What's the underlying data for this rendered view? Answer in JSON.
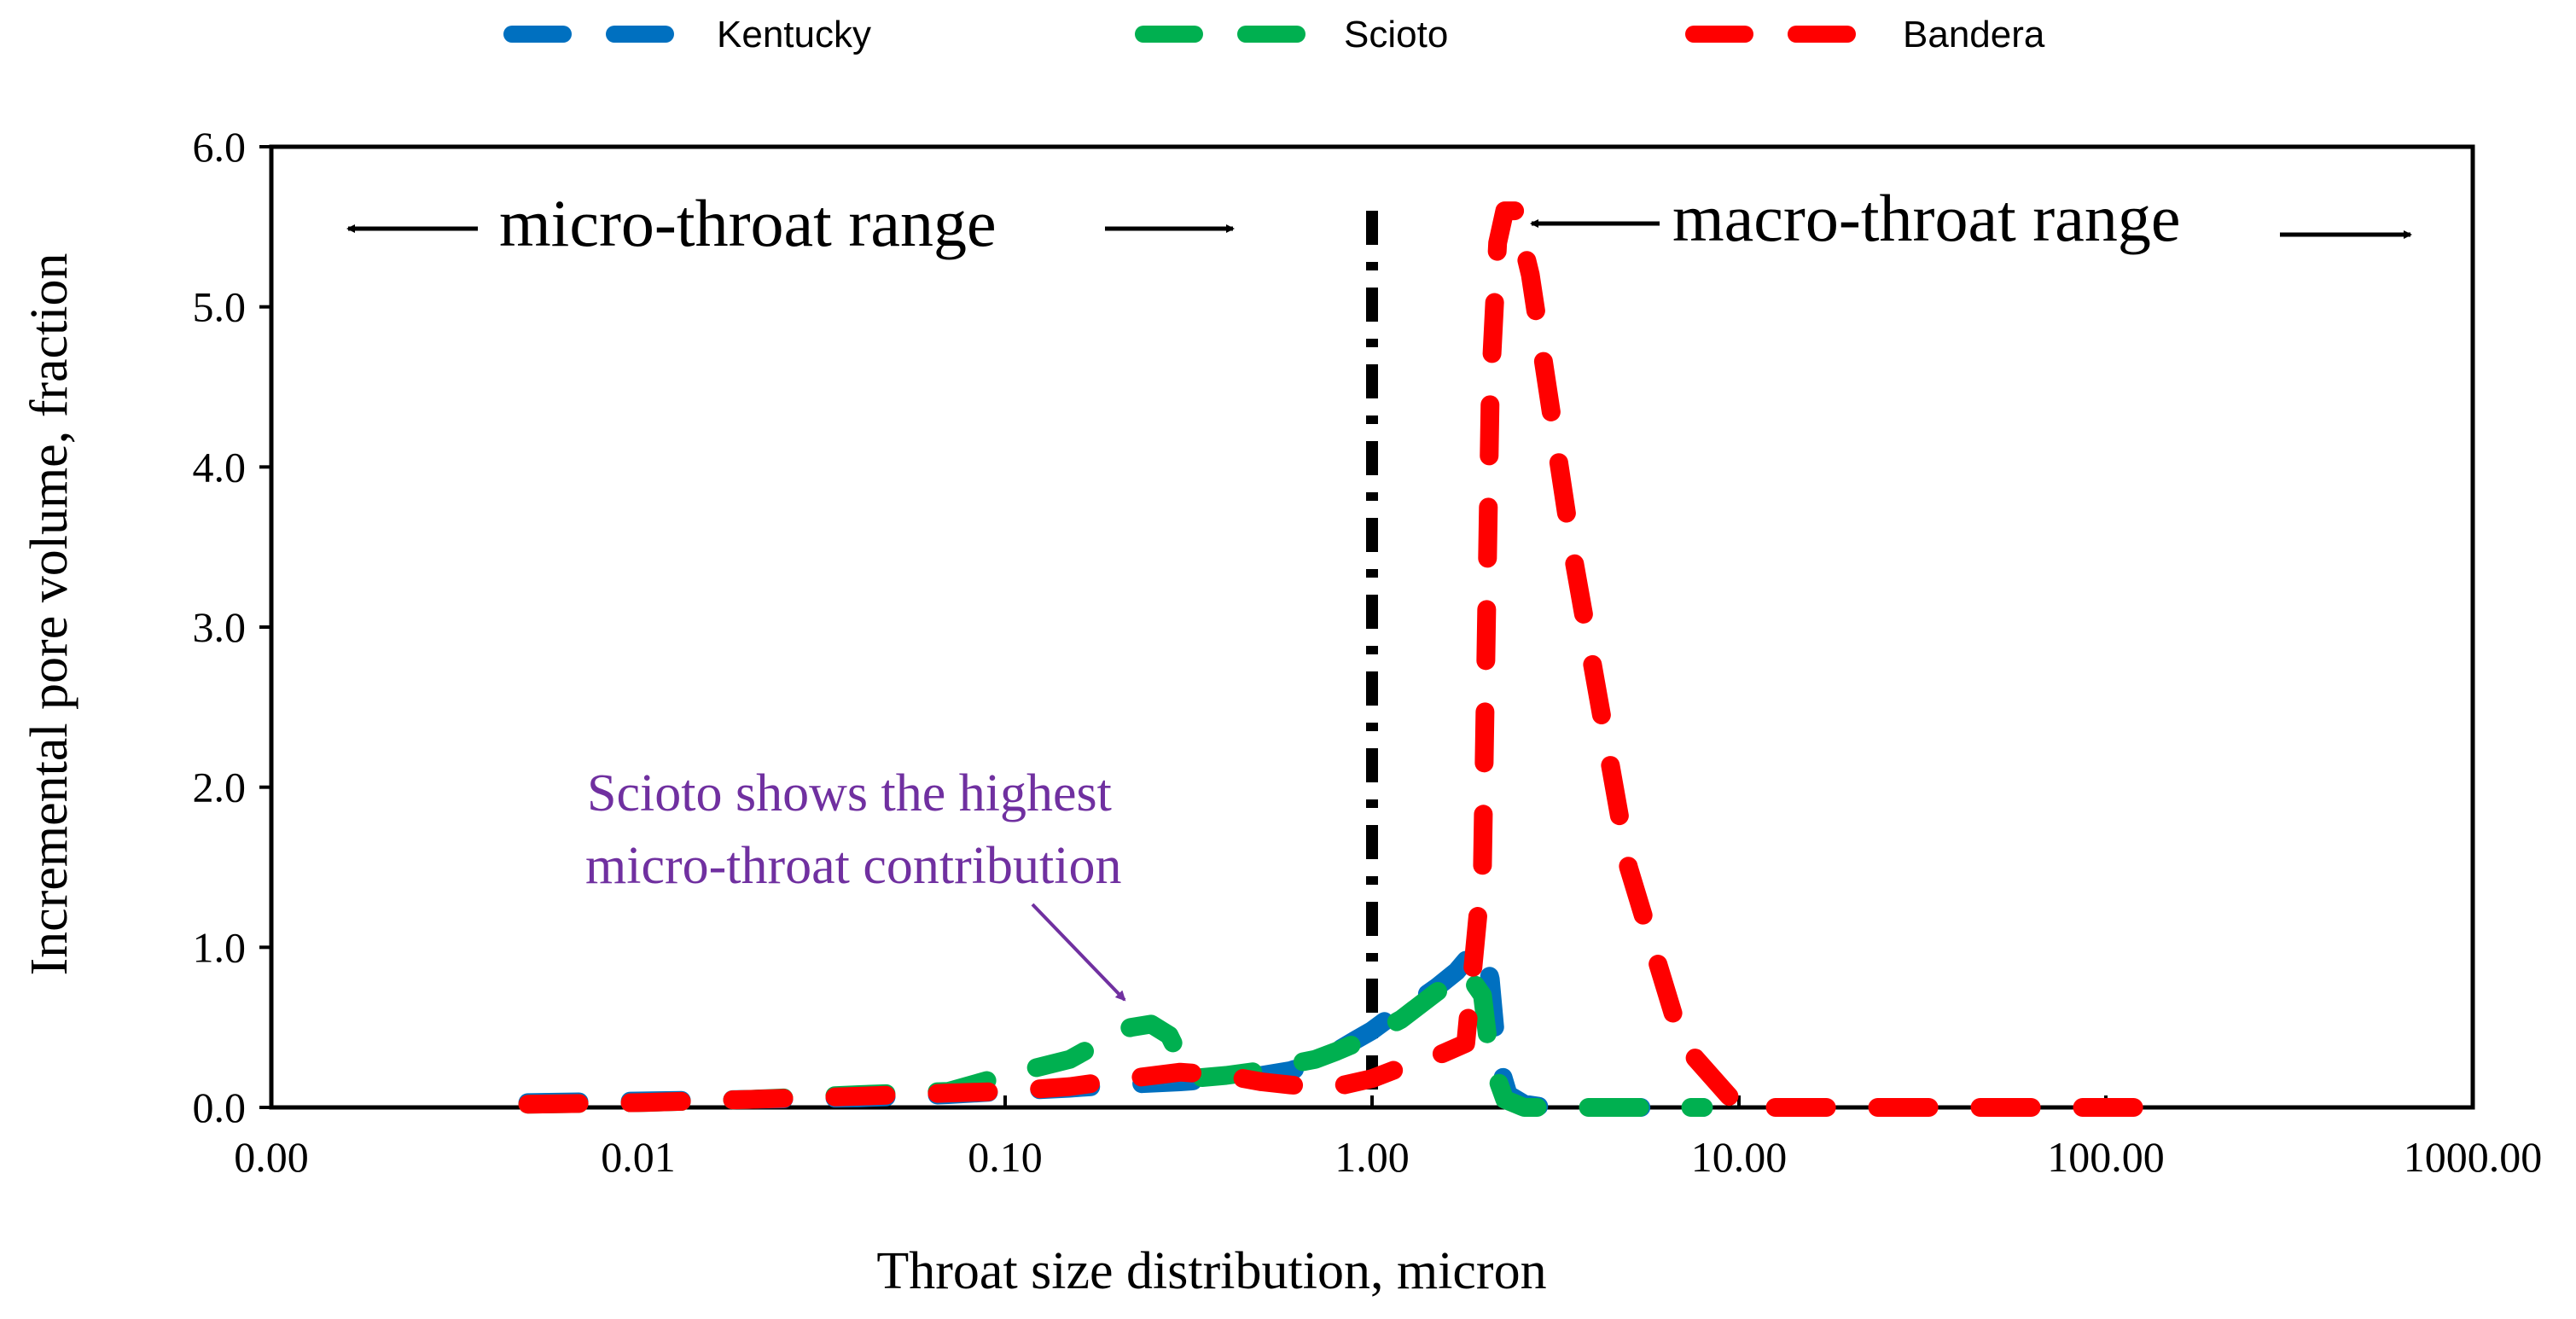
{
  "chart_data": {
    "type": "line",
    "xscale": "log",
    "xlabel": "Throat size distribution, micron",
    "ylabel": "Incremental pore volume, fraction",
    "xlim": [
      0.001,
      1000
    ],
    "ylim": [
      0,
      6
    ],
    "x_ticks": [
      0.001,
      0.01,
      0.1,
      1,
      10,
      100,
      1000
    ],
    "x_tick_labels": [
      "0.00",
      "0.01",
      "0.10",
      "1.00",
      "10.00",
      "100.00",
      "1000.00"
    ],
    "y_ticks": [
      0,
      1,
      2,
      3,
      4,
      5,
      6
    ],
    "y_tick_labels": [
      "0.0",
      "1.0",
      "2.0",
      "3.0",
      "4.0",
      "5.0",
      "6.0"
    ],
    "grid": false,
    "legend_position": "top",
    "series": [
      {
        "name": "Kentucky",
        "color": "#0070C0",
        "x": [
          0.005,
          0.01,
          0.02,
          0.04,
          0.07,
          0.1,
          0.15,
          0.2,
          0.3,
          0.4,
          0.5,
          0.6,
          0.7,
          0.8,
          0.9,
          1.0,
          1.1,
          1.3,
          1.5,
          1.7,
          1.85,
          2.0,
          2.1,
          2.2,
          2.35,
          2.6,
          3.0,
          5.0,
          8.0
        ],
        "values": [
          0.03,
          0.04,
          0.05,
          0.06,
          0.08,
          0.1,
          0.12,
          0.14,
          0.16,
          0.18,
          0.2,
          0.23,
          0.28,
          0.35,
          0.42,
          0.48,
          0.55,
          0.65,
          0.75,
          0.85,
          0.95,
          1.0,
          0.8,
          0.3,
          0.08,
          0.02,
          0.0,
          0.0,
          0.0
        ]
      },
      {
        "name": "Scioto",
        "color": "#00B050",
        "x": [
          0.005,
          0.01,
          0.02,
          0.04,
          0.07,
          0.1,
          0.15,
          0.18,
          0.22,
          0.25,
          0.28,
          0.32,
          0.4,
          0.5,
          0.6,
          0.7,
          0.8,
          0.9,
          1.0,
          1.2,
          1.5,
          1.8,
          2.0,
          2.1,
          2.3,
          2.6,
          3.0,
          5.0,
          8.0
        ],
        "values": [
          0.02,
          0.03,
          0.05,
          0.08,
          0.1,
          0.2,
          0.3,
          0.4,
          0.5,
          0.52,
          0.45,
          0.18,
          0.2,
          0.23,
          0.27,
          0.3,
          0.35,
          0.4,
          0.45,
          0.55,
          0.72,
          0.85,
          0.7,
          0.3,
          0.05,
          0.0,
          0.0,
          0.0,
          0.0
        ]
      },
      {
        "name": "Bandera",
        "color": "#FF0000",
        "x": [
          0.005,
          0.01,
          0.02,
          0.04,
          0.07,
          0.1,
          0.15,
          0.2,
          0.3,
          0.4,
          0.5,
          0.6,
          0.7,
          0.8,
          1.0,
          1.2,
          1.5,
          1.8,
          2.0,
          2.1,
          2.2,
          2.3,
          2.45,
          2.7,
          3.5,
          5.0,
          7.0,
          10.0,
          20.0,
          50.0,
          100.0,
          150.0
        ],
        "values": [
          0.02,
          0.03,
          0.05,
          0.07,
          0.09,
          0.1,
          0.13,
          0.17,
          0.22,
          0.2,
          0.16,
          0.14,
          0.13,
          0.13,
          0.18,
          0.25,
          0.32,
          0.4,
          1.5,
          4.5,
          5.4,
          5.6,
          5.6,
          5.2,
          3.5,
          1.5,
          0.4,
          0.0,
          0.0,
          0.0,
          0.0,
          0.0
        ]
      }
    ],
    "annotations": {
      "boundary_x": 1.0,
      "micro_range_label": "micro-throat range",
      "macro_range_label": "macro-throat range",
      "note_line1": "Scioto shows the highest",
      "note_line2": "micro-throat contribution",
      "note_color": "#7030A0"
    }
  }
}
